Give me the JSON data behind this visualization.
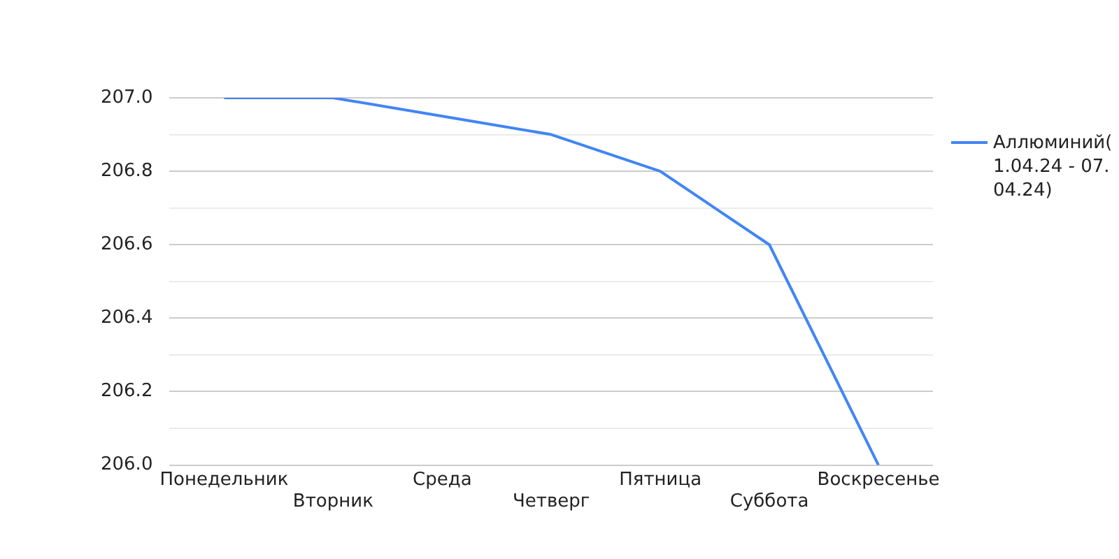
{
  "chart_data": {
    "type": "line",
    "categories": [
      "Понедельник",
      "Вторник",
      "Среда",
      "Четверг",
      "Пятница",
      "Суббота",
      "Воскресенье"
    ],
    "series": [
      {
        "name": "Аллюминий( 1.04.24 - 07. 04.24)",
        "color": "#4285f4",
        "values": [
          207.0,
          207.0,
          206.95,
          206.9,
          206.8,
          206.6,
          206.0
        ]
      }
    ],
    "ylim": [
      206.0,
      207.0
    ],
    "yticks": [
      {
        "value": 206.0,
        "label": "206.0"
      },
      {
        "value": 206.1,
        "label": null
      },
      {
        "value": 206.2,
        "label": "206.2"
      },
      {
        "value": 206.3,
        "label": null
      },
      {
        "value": 206.4,
        "label": "206.4"
      },
      {
        "value": 206.5,
        "label": null
      },
      {
        "value": 206.6,
        "label": "206.6"
      },
      {
        "value": 206.7,
        "label": null
      },
      {
        "value": 206.8,
        "label": "206.8"
      },
      {
        "value": 206.9,
        "label": null
      },
      {
        "value": 207.0,
        "label": "207.0"
      }
    ],
    "grid": "y",
    "legend": "right",
    "marker": "none",
    "line_style": "solid"
  }
}
